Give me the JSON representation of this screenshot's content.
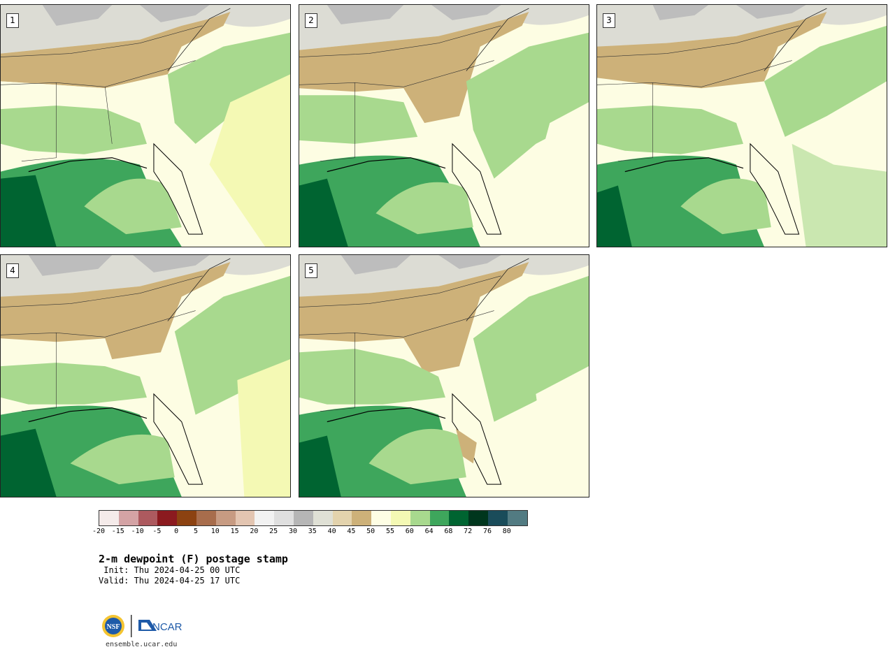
{
  "panels": [
    {
      "number": "1"
    },
    {
      "number": "2"
    },
    {
      "number": "3"
    },
    {
      "number": "4"
    },
    {
      "number": "5"
    }
  ],
  "colorbar": {
    "colors": [
      "#f5ebea",
      "#d4a3a5",
      "#ad5a5f",
      "#8b1a1f",
      "#8c4211",
      "#a86d4c",
      "#c79b82",
      "#e3c5b1",
      "#f2f2f2",
      "#dfdfdf",
      "#b6b6b6",
      "#dfe0d5",
      "#e3d3ad",
      "#cdb179",
      "#fefee4",
      "#f4f9b4",
      "#a8d98e",
      "#3ea65c",
      "#006431",
      "#00361d",
      "#1a4c5a",
      "#527b82"
    ],
    "ticks": [
      "-20",
      "-15",
      "-10",
      "-5",
      "0",
      "5",
      "10",
      "15",
      "20",
      "25",
      "30",
      "35",
      "40",
      "45",
      "50",
      "55",
      "60",
      "64",
      "68",
      "72",
      "76",
      "80"
    ]
  },
  "legend_palette": {
    "gray": "#bdbdbd",
    "light_gray": "#dcdcd4",
    "tan_light": "#e3d3ad",
    "tan": "#cdb179",
    "cream": "#fdfde3",
    "pale_yellow": "#f4f9b4",
    "light_green": "#a8d98e",
    "green": "#3ea65c",
    "dark_green": "#006431"
  },
  "caption": {
    "title": "2-m dewpoint (F) postage stamp",
    "init": " Init: Thu 2024-04-25 00 UTC",
    "valid": "Valid: Thu 2024-04-25 17 UTC"
  },
  "logo": {
    "nsf_text": "NSF",
    "ncar_text": "NCAR"
  },
  "site": "ensemble.ucar.edu"
}
